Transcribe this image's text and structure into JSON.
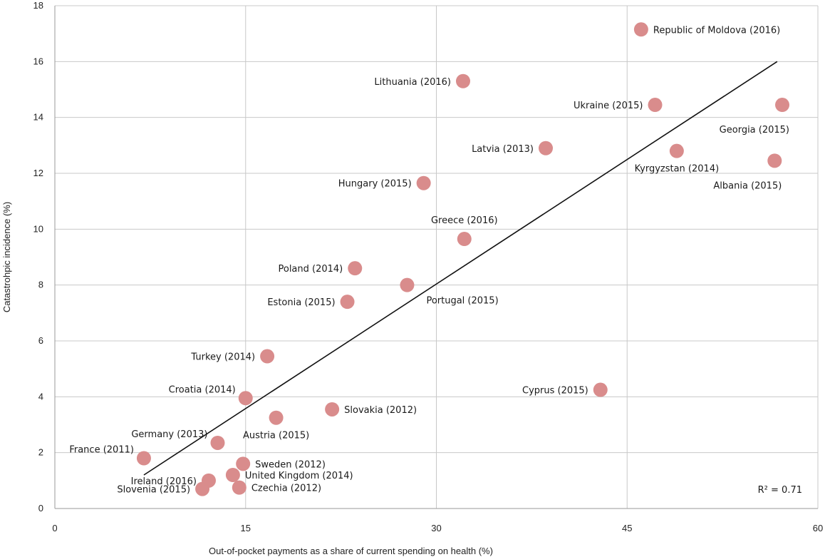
{
  "chart_data": {
    "type": "scatter",
    "xlabel": "Out-of-pocket payments as a share of current spending on health (%)",
    "ylabel": "Catastrohpic incidence (%)",
    "xlim": [
      0,
      60
    ],
    "ylim": [
      0,
      18
    ],
    "x_ticks": [
      "0",
      "15",
      "30",
      "45",
      "60"
    ],
    "y_ticks": [
      "0",
      "2",
      "4",
      "6",
      "8",
      "10",
      "12",
      "14",
      "16",
      "18"
    ],
    "grid": true,
    "marker_color": "#d98c8c",
    "trendline": {
      "x": [
        7,
        56.8
      ],
      "y": [
        1.2,
        16.0
      ]
    },
    "r_squared_label": "R² = 0.71",
    "points": [
      {
        "label": "Republic of Moldova (2016)",
        "x": 46.1,
        "y": 17.15,
        "label_pos": "right"
      },
      {
        "label": "Lithuania (2016)",
        "x": 32.1,
        "y": 15.3,
        "label_pos": "left"
      },
      {
        "label": "Ukraine (2015)",
        "x": 47.2,
        "y": 14.45,
        "label_pos": "left"
      },
      {
        "label": "Georgia (2015)",
        "x": 57.2,
        "y": 14.45,
        "label_pos": "below-left"
      },
      {
        "label": "Latvia (2013)",
        "x": 38.6,
        "y": 12.9,
        "label_pos": "left"
      },
      {
        "label": "Kyrgyzstan (2014)",
        "x": 48.9,
        "y": 12.8,
        "label_pos": "below"
      },
      {
        "label": "Albania (2015)",
        "x": 56.6,
        "y": 12.45,
        "label_pos": "below-left"
      },
      {
        "label": "Hungary (2015)",
        "x": 29.0,
        "y": 11.65,
        "label_pos": "left"
      },
      {
        "label": "Greece (2016)",
        "x": 32.2,
        "y": 9.65,
        "label_pos": "above"
      },
      {
        "label": "Poland (2014)",
        "x": 23.6,
        "y": 8.6,
        "label_pos": "left"
      },
      {
        "label": "Portugal (2015)",
        "x": 27.7,
        "y": 8.0,
        "label_pos": "below-right"
      },
      {
        "label": "Estonia (2015)",
        "x": 23.0,
        "y": 7.4,
        "label_pos": "left"
      },
      {
        "label": "Turkey (2014)",
        "x": 16.7,
        "y": 5.45,
        "label_pos": "left"
      },
      {
        "label": "Cyprus (2015)",
        "x": 42.9,
        "y": 4.25,
        "label_pos": "left"
      },
      {
        "label": "Croatia (2014)",
        "x": 15.0,
        "y": 3.95,
        "label_pos": "above-left"
      },
      {
        "label": "Slovakia (2012)",
        "x": 21.8,
        "y": 3.55,
        "label_pos": "right"
      },
      {
        "label": "Austria (2015)",
        "x": 17.4,
        "y": 3.25,
        "label_pos": "below"
      },
      {
        "label": "Germany (2013)",
        "x": 12.8,
        "y": 2.35,
        "label_pos": "above-left"
      },
      {
        "label": "France (2011)",
        "x": 7.0,
        "y": 1.8,
        "label_pos": "above-left"
      },
      {
        "label": "Sweden (2012)",
        "x": 14.8,
        "y": 1.6,
        "label_pos": "right"
      },
      {
        "label": "United Kingdom (2014)",
        "x": 14.0,
        "y": 1.2,
        "label_pos": "right"
      },
      {
        "label": "Ireland (2016)",
        "x": 12.1,
        "y": 1.0,
        "label_pos": "left"
      },
      {
        "label": "Czechia (2012)",
        "x": 14.5,
        "y": 0.75,
        "label_pos": "right"
      },
      {
        "label": "Slovenia (2015)",
        "x": 11.6,
        "y": 0.7,
        "label_pos": "left"
      }
    ]
  }
}
